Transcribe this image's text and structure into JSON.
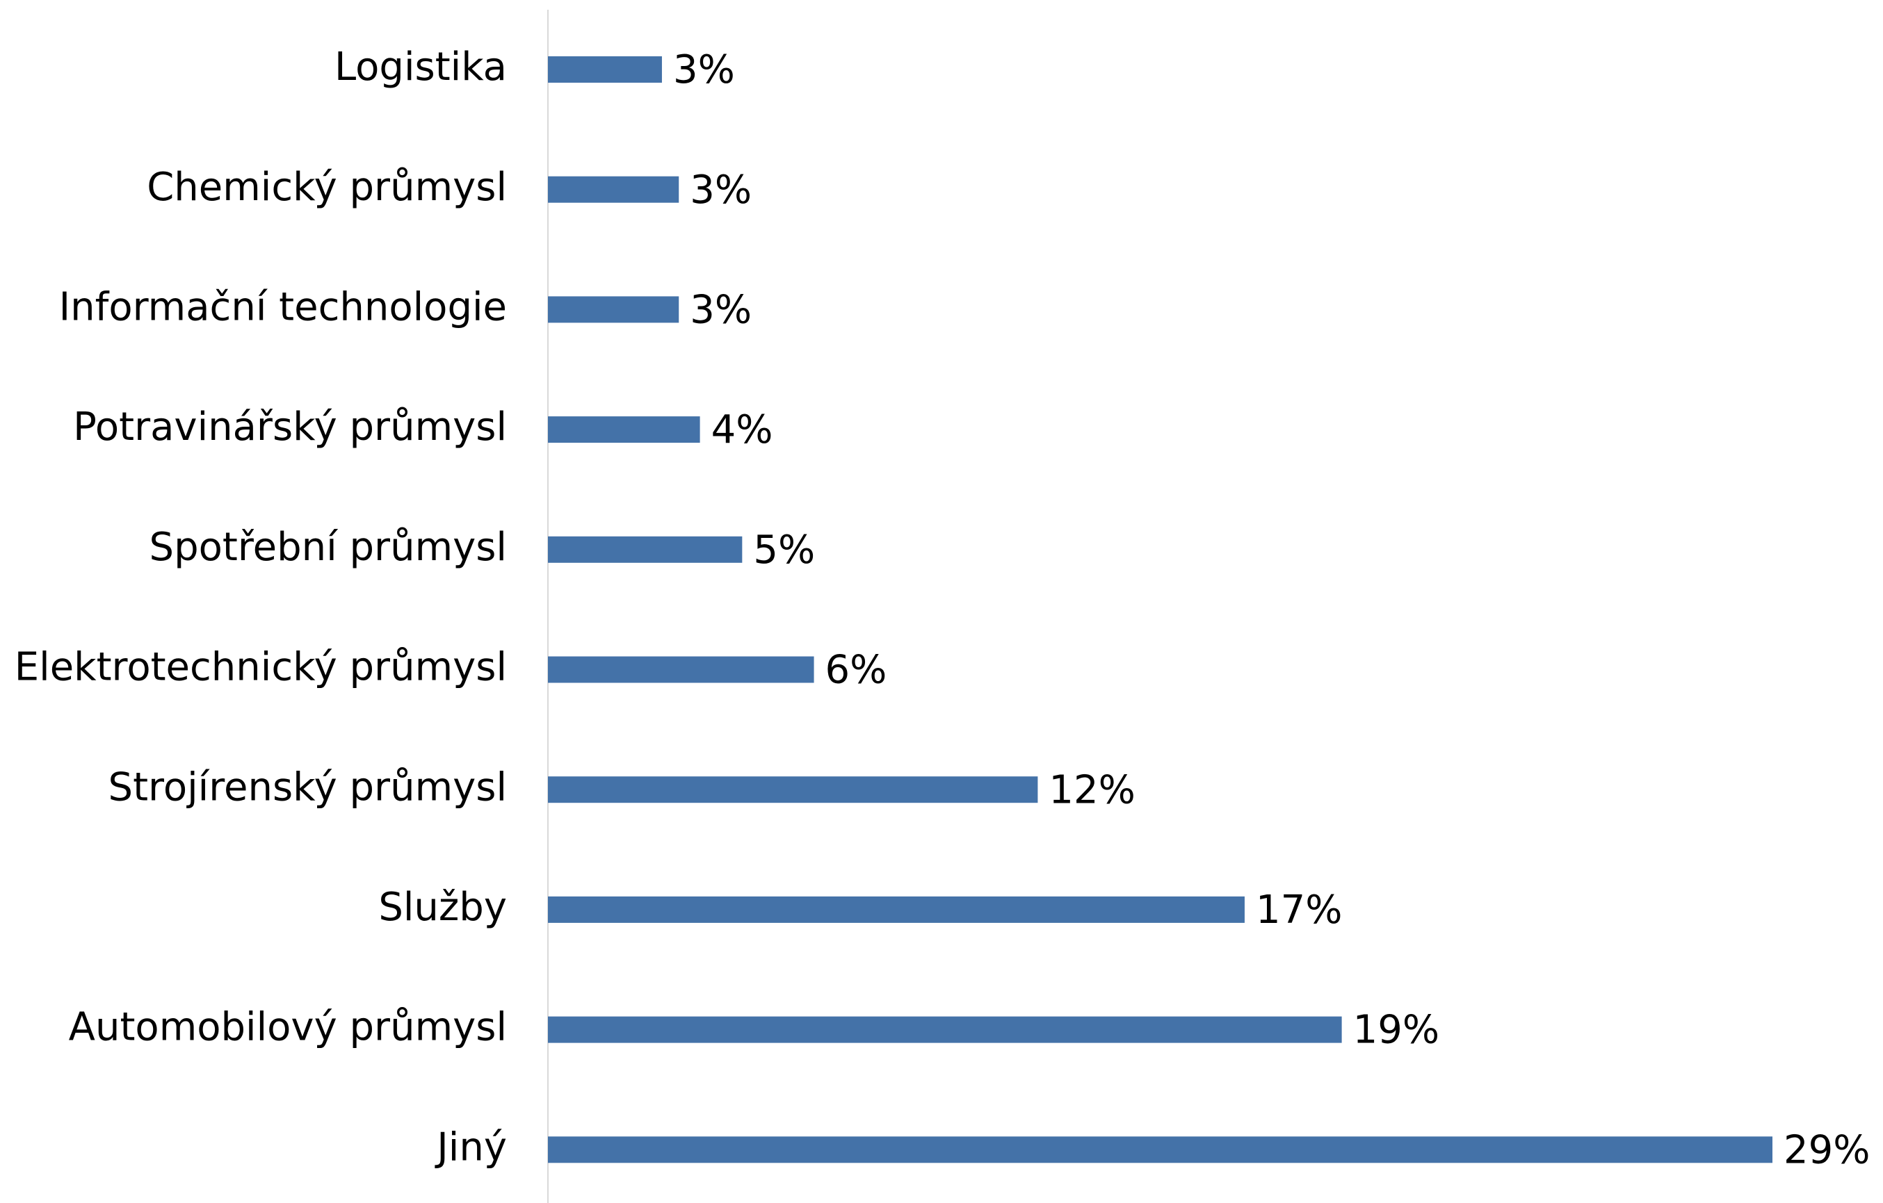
{
  "chart_data": {
    "type": "bar",
    "orientation": "horizontal",
    "categories": [
      "Logistika",
      "Chemický průmysl",
      "Informační technologie",
      "Potravinářský průmysl",
      "Spotřební průmysl",
      "Elektrotechnický průmysl",
      "Strojírenský průmysl",
      "Služby",
      "Automobilový průmysl",
      "Jiný"
    ],
    "values": [
      2.7,
      3.1,
      3.1,
      3.6,
      4.6,
      6.3,
      11.6,
      16.5,
      18.8,
      29
    ],
    "value_labels": [
      "3%",
      "3%",
      "3%",
      "4%",
      "5%",
      "6%",
      "12%",
      "17%",
      "19%",
      "29%"
    ],
    "color": "#4472a8",
    "xlim": [
      0,
      29
    ]
  }
}
